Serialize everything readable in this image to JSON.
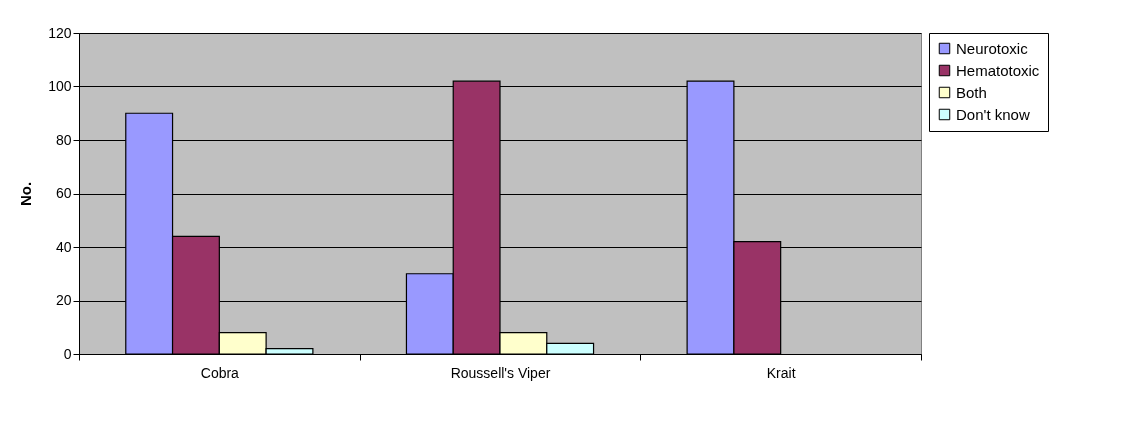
{
  "chart_data": {
    "type": "bar",
    "ylabel": "No.",
    "categories": [
      "Cobra",
      "Roussell's Viper",
      "Krait"
    ],
    "series": [
      {
        "name": "Neurotoxic",
        "color": "#9999ff",
        "values": [
          90,
          30,
          102
        ]
      },
      {
        "name": "Hematotoxic",
        "color": "#993366",
        "values": [
          44,
          102,
          42
        ]
      },
      {
        "name": "Both",
        "color": "#ffffcc",
        "values": [
          8,
          8,
          null
        ]
      },
      {
        "name": "Don't know",
        "color": "#ccffff",
        "values": [
          2,
          4,
          null
        ]
      }
    ],
    "ylim": [
      0,
      120
    ],
    "yticks": [
      0,
      20,
      40,
      60,
      80,
      100,
      120
    ],
    "grid": "y",
    "legend": "right"
  }
}
